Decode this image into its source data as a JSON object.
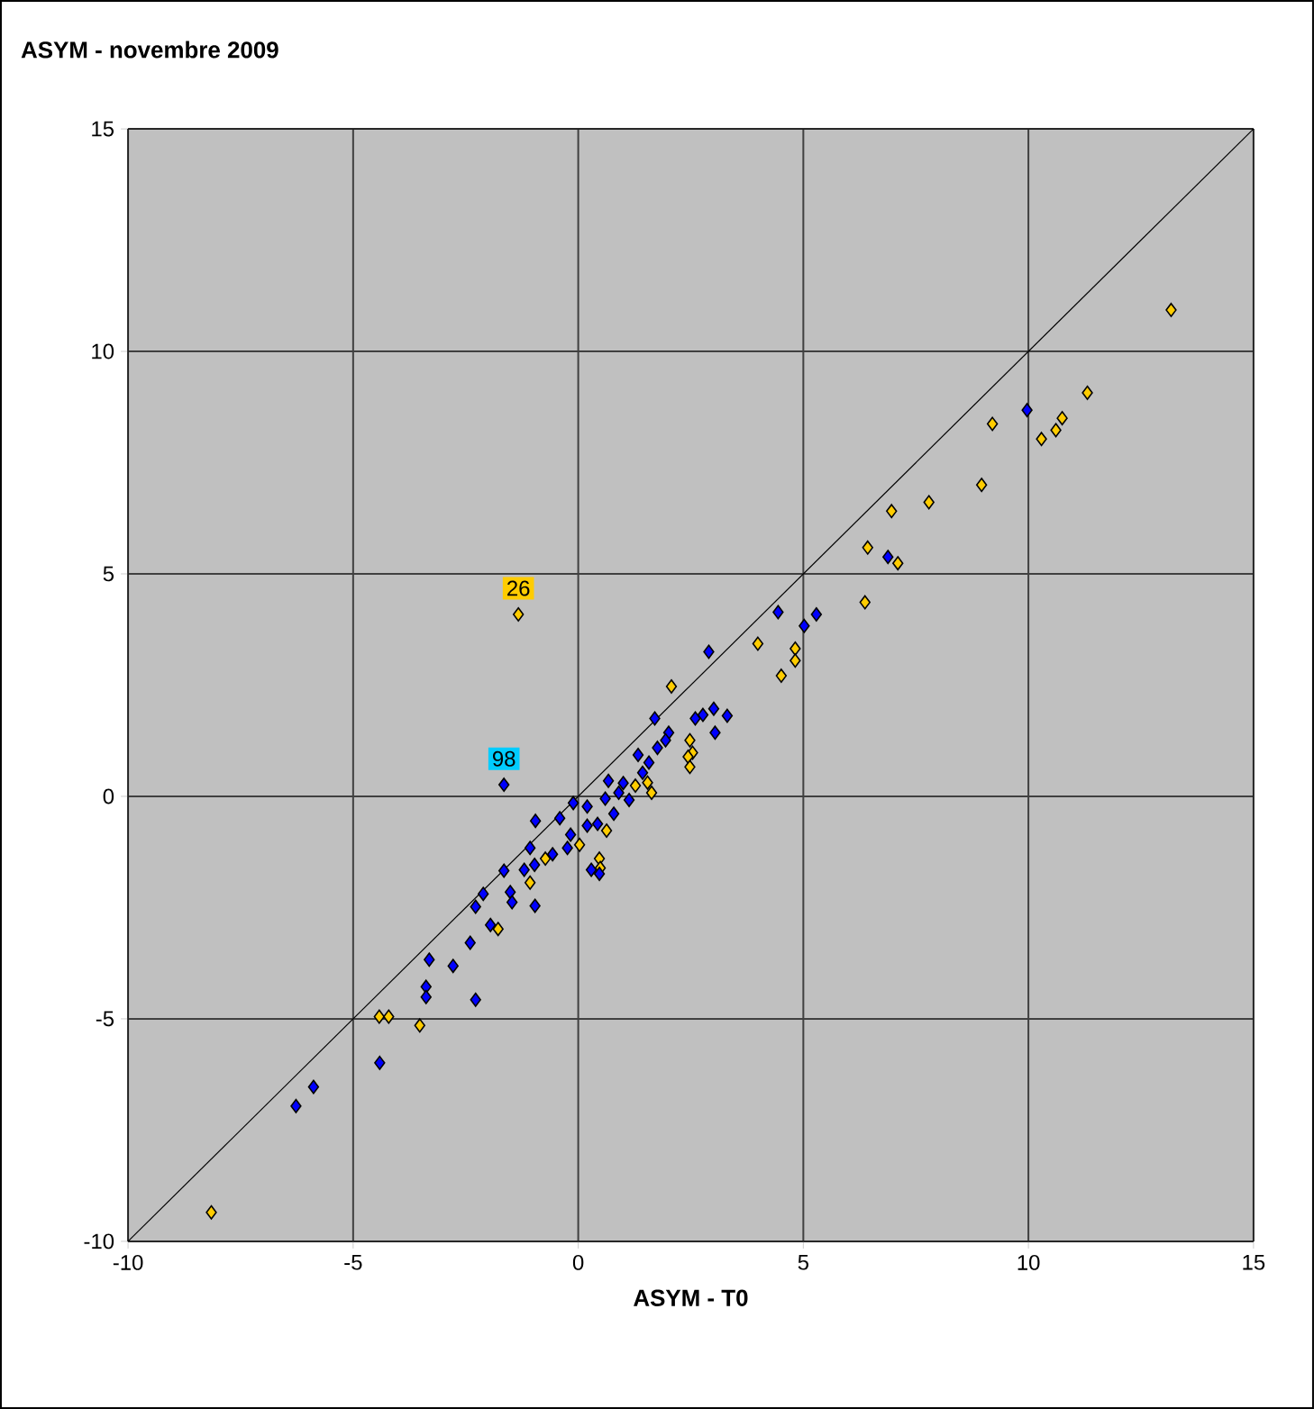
{
  "chart_data": {
    "type": "scatter",
    "title": "ASYM - novembre 2009",
    "xlabel": "ASYM - T0",
    "xlim": [
      -10,
      15
    ],
    "ylim": [
      -10,
      15
    ],
    "xticks": [
      -10,
      -5,
      0,
      5,
      10,
      15
    ],
    "yticks": [
      -10,
      -5,
      0,
      5,
      10,
      15
    ],
    "grid": true,
    "marker": "diamond",
    "series": [
      {
        "color": "#ffcc00",
        "x": [
          13.17,
          11.31,
          10.75,
          10.61,
          10.29,
          9.2,
          8.96,
          7.79,
          6.96,
          6.43,
          7.1,
          6.37,
          4.82,
          4.82,
          -1.33,
          3.99,
          4.51,
          2.07,
          2.48,
          2.54,
          2.44,
          2.48,
          1.54,
          1.27,
          1.63,
          0.63,
          0.03,
          -0.73,
          0.47,
          0.49,
          -1.07,
          -1.78,
          -4.42,
          -4.21,
          -3.52,
          -8.15
        ],
        "values": [
          10.93,
          9.07,
          8.5,
          8.23,
          8.03,
          8.37,
          7.0,
          6.61,
          6.41,
          5.59,
          5.24,
          4.36,
          3.32,
          3.05,
          4.09,
          3.43,
          2.71,
          2.47,
          1.26,
          0.98,
          0.89,
          0.66,
          0.31,
          0.24,
          0.08,
          -0.77,
          -1.09,
          -1.4,
          -1.4,
          -1.61,
          -1.94,
          -2.98,
          -4.95,
          -4.95,
          -5.15,
          -9.35
        ]
      },
      {
        "color": "#0000ff",
        "x": [
          9.97,
          6.88,
          5.29,
          5.02,
          4.44,
          2.9,
          1.7,
          2.6,
          2.77,
          3.01,
          3.31,
          3.04,
          2.01,
          1.94,
          1.76,
          1.33,
          1.57,
          1.43,
          0.67,
          1.0,
          1.13,
          0.9,
          0.6,
          -0.11,
          0.2,
          -0.41,
          -0.95,
          0.43,
          0.2,
          0.79,
          -0.17,
          -0.24,
          -0.57,
          -1.07,
          -0.97,
          -1.2,
          0.29,
          0.47,
          -1.65,
          -1.65,
          -2.11,
          -2.28,
          -1.51,
          -1.47,
          -0.96,
          -1.95,
          -2.4,
          -3.31,
          -2.78,
          -3.38,
          -3.38,
          -2.28,
          -4.41,
          -5.88,
          -6.27
        ],
        "values": [
          8.68,
          5.38,
          4.09,
          3.83,
          4.14,
          3.25,
          1.75,
          1.75,
          1.83,
          1.97,
          1.81,
          1.43,
          1.43,
          1.26,
          1.09,
          0.93,
          0.76,
          0.53,
          0.35,
          0.3,
          -0.08,
          0.08,
          -0.05,
          -0.15,
          -0.23,
          -0.49,
          -0.55,
          -0.62,
          -0.66,
          -0.39,
          -0.86,
          -1.16,
          -1.3,
          -1.16,
          -1.54,
          -1.65,
          -1.65,
          -1.74,
          0.26,
          -1.67,
          -2.19,
          -2.48,
          -2.15,
          -2.38,
          -2.46,
          -2.89,
          -3.29,
          -3.67,
          -3.81,
          -4.28,
          -4.51,
          -4.57,
          -5.99,
          -6.53,
          -6.96
        ]
      },
      {
        "type": "line",
        "marker": "none",
        "color": "#000000",
        "x": [
          -10,
          15
        ],
        "values": [
          -10,
          15
        ]
      }
    ],
    "annotations": [
      {
        "text": "26",
        "x": -1.33,
        "y": 4.09
      },
      {
        "text": "98",
        "x": -1.65,
        "y": 0.26
      }
    ]
  }
}
